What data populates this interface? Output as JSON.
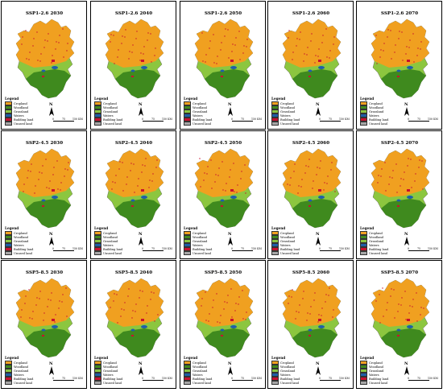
{
  "panels": [
    {
      "title": "SSP1-2.6   2030"
    },
    {
      "title": "SSP1-2.6   2040"
    },
    {
      "title": "SSP1-2.6   2050"
    },
    {
      "title": "SSP1-2.6   2060"
    },
    {
      "title": "SSP1-2.6   2070"
    },
    {
      "title": "SSP2-4.5   2030"
    },
    {
      "title": "SSP2-4.5   2040"
    },
    {
      "title": "SSP2-4.5   2050"
    },
    {
      "title": "SSP2-4.5   2060"
    },
    {
      "title": "SSP2-4.5   2070"
    },
    {
      "title": "SSP5-8.5   2030"
    },
    {
      "title": "SSP5-8.5   2040"
    },
    {
      "title": "SSP5-8.5   2050"
    },
    {
      "title": "SSP5-8.5   2060"
    },
    {
      "title": "SSP5-8.5   2070"
    }
  ],
  "legend": {
    "title": "Legend",
    "items": [
      {
        "label": "Cropland",
        "color": "#f0a020"
      },
      {
        "label": "Woodland",
        "color": "#3f8a1e"
      },
      {
        "label": "Grassland",
        "color": "#8cc63f"
      },
      {
        "label": "Waters",
        "color": "#1f5fa8"
      },
      {
        "label": "Building land",
        "color": "#c8102e"
      },
      {
        "label": "Unused land",
        "color": "#a6a6a6"
      }
    ]
  },
  "north_label": "N",
  "scale": {
    "t0": "0",
    "t1": "75",
    "t2": "150 KM"
  }
}
